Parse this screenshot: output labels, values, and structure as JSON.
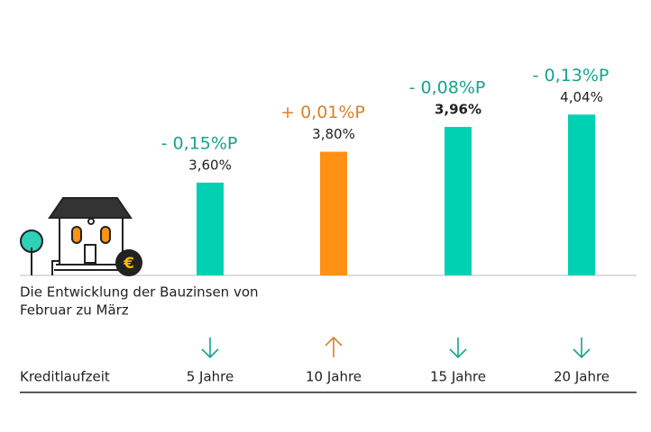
{
  "chart_data": {
    "type": "bar",
    "categories": [
      "5 Jahre",
      "10 Jahre",
      "15 Jahre",
      "20 Jahre"
    ],
    "values": [
      3.6,
      3.8,
      3.96,
      4.04
    ],
    "value_labels": [
      "3,60%",
      "3,80%",
      "3,96%",
      "4,04%"
    ],
    "colors": [
      "#00d1b2",
      "#ff9115",
      "#00d1b2",
      "#00d1b2"
    ],
    "changes": [
      -0.15,
      0.01,
      -0.08,
      -0.13
    ],
    "change_labels": [
      "- 0,15%P",
      "+ 0,01%P",
      "- 0,08%P",
      "- 0,13%P"
    ],
    "change_colors": {
      "down": "#17a291",
      "up": "#d9822b"
    },
    "x_label": "Kreditlaufzeit",
    "caption": [
      "Die Entwicklung der Bauzinsen von",
      "Februar zu März"
    ],
    "ylim": [
      3,
      4.1
    ]
  }
}
